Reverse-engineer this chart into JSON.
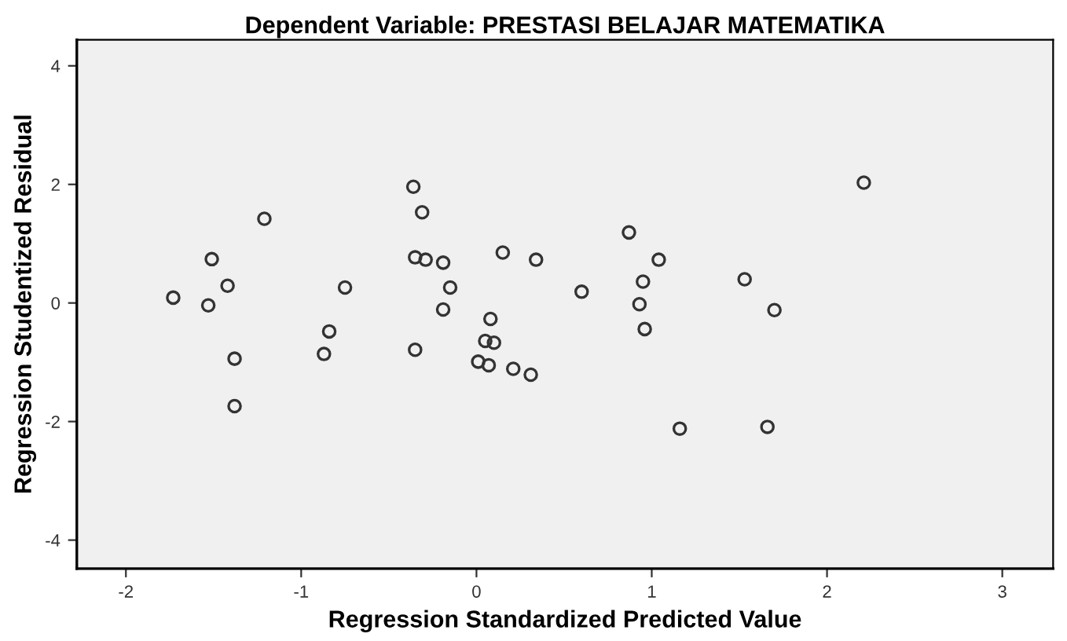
{
  "chart_data": {
    "type": "scatter",
    "title": "Dependent Variable: PRESTASI BELAJAR MATEMATIKA",
    "xlabel": "Regression Standardized Predicted Value",
    "ylabel": "Regression Studentized Residual",
    "x": [
      -1.73,
      -1.53,
      -1.51,
      -1.42,
      -1.21,
      -0.75,
      -0.36,
      -0.31,
      -0.35,
      -0.29,
      -0.19,
      -0.15,
      -0.19,
      0.15,
      0.34,
      0.08,
      -0.84,
      2.21,
      0.87,
      1.04,
      0.95,
      0.6,
      1.53,
      0.93,
      1.7,
      0.96,
      -0.87,
      -1.38,
      -1.38,
      -0.35,
      0.05,
      0.1,
      0.01,
      0.07,
      0.21,
      0.31,
      1.16,
      1.66
    ],
    "values": [
      0.09,
      -0.04,
      0.74,
      0.29,
      1.42,
      0.26,
      1.96,
      1.53,
      0.77,
      0.73,
      0.68,
      0.26,
      -0.11,
      0.85,
      0.73,
      -0.27,
      -0.48,
      2.03,
      1.19,
      0.73,
      0.36,
      0.19,
      0.4,
      -0.02,
      -0.12,
      -0.44,
      -0.86,
      -0.94,
      -1.74,
      -0.79,
      -0.64,
      -0.67,
      -0.99,
      -1.05,
      -1.11,
      -1.21,
      -2.12,
      -2.09
    ],
    "color": "#333333",
    "marker": "circle",
    "xlim": [
      -2.28,
      3.29
    ],
    "ylim": [
      -4.48,
      4.44
    ],
    "xticks": [
      -2,
      -1,
      0,
      1,
      2,
      3
    ],
    "yticks": [
      -4,
      -2,
      0,
      2,
      4
    ],
    "grid": false
  }
}
